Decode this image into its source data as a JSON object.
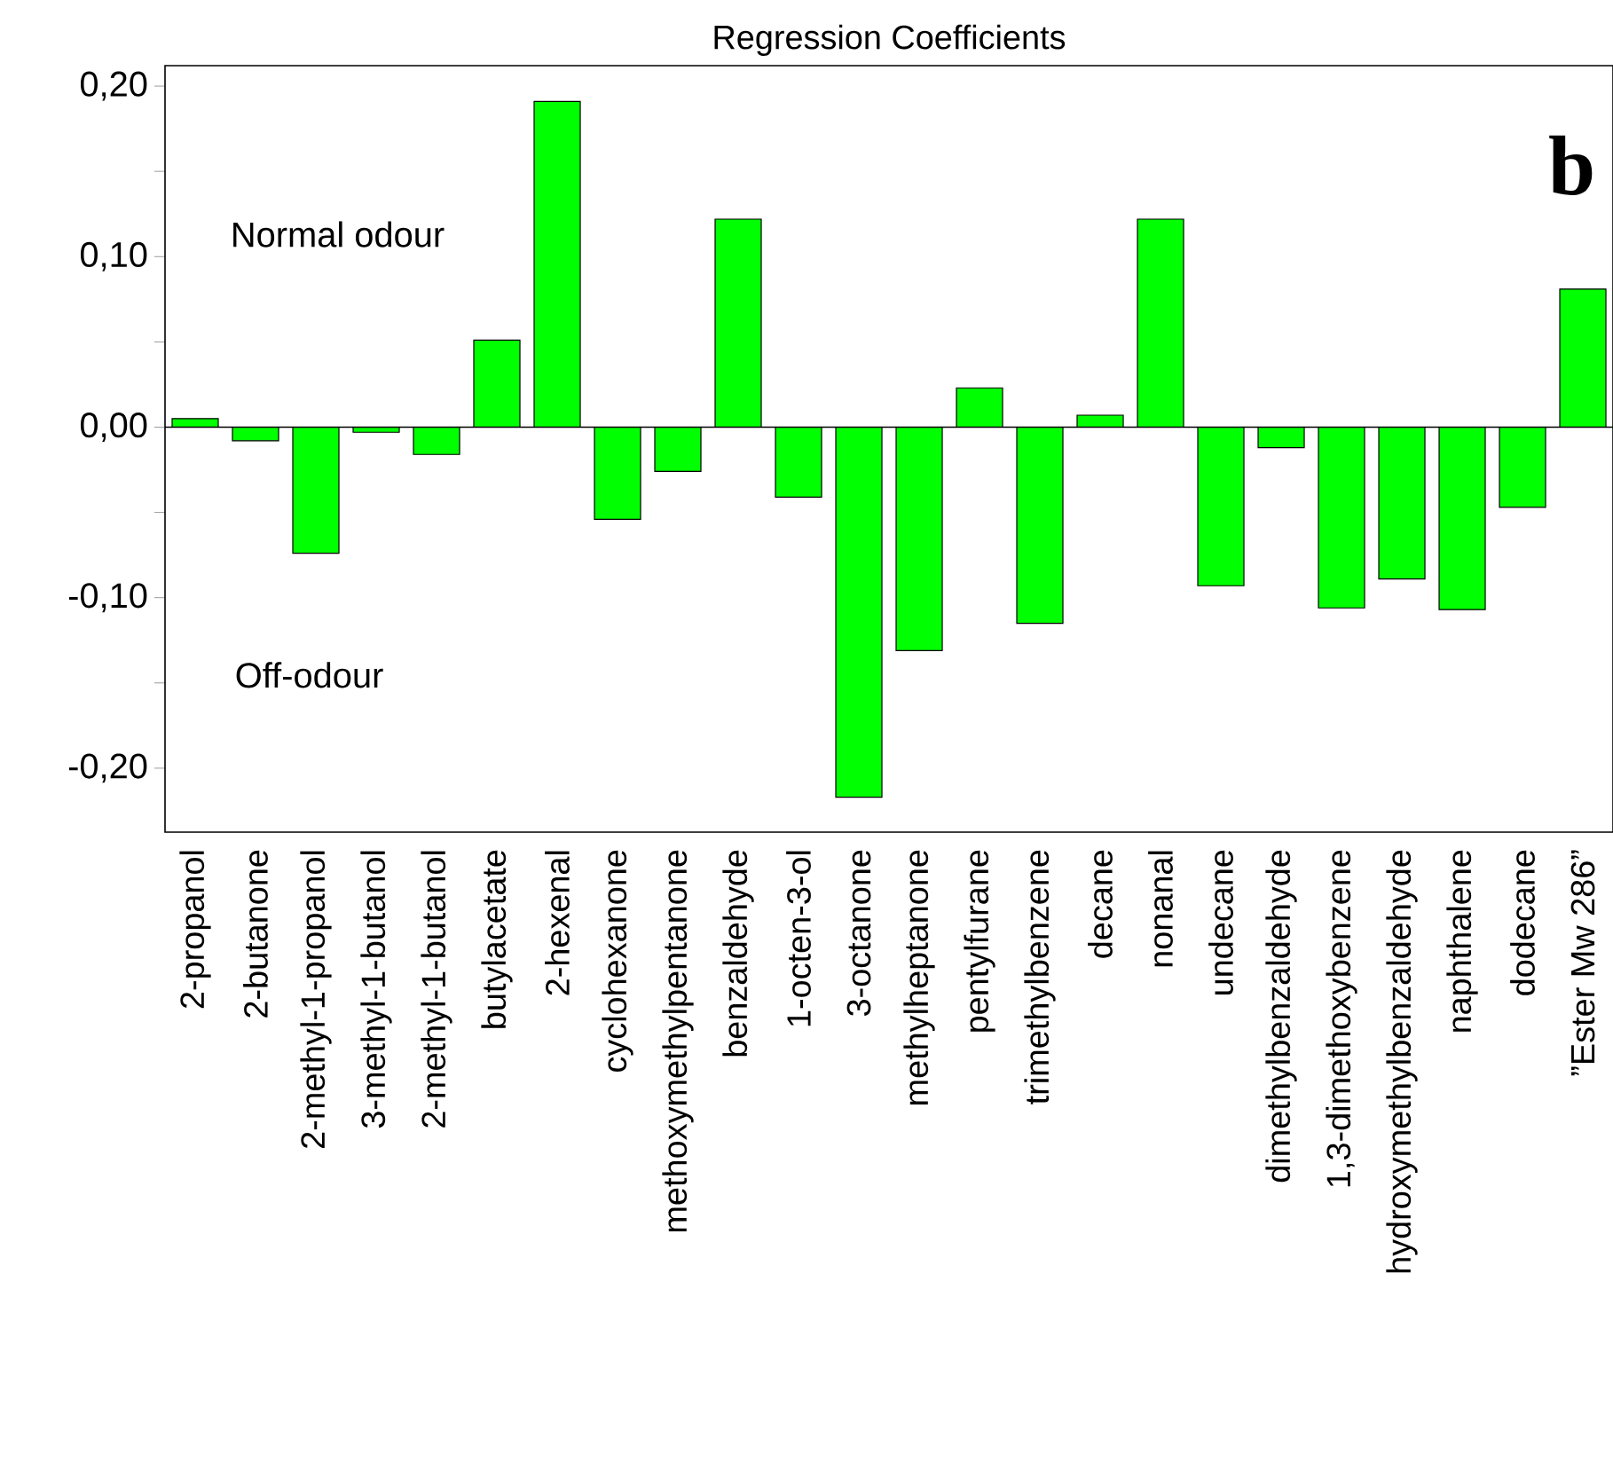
{
  "chart_data": {
    "type": "bar",
    "title": "Regression Coefficients",
    "categories": [
      "2-propanol",
      "2-butanone",
      "2-methyl-1-propanol",
      "3-methyl-1-butanol",
      "2-methyl-1-butanol",
      "butylacetate",
      "2-hexenal",
      "cyclohexanone",
      "methoxymethylpentanone",
      "benzaldehyde",
      "1-octen-3-ol",
      "3-octanone",
      "methylheptanone",
      "pentylfurane",
      "trimethylbenzene",
      "decane",
      "nonanal",
      "undecane",
      "dimethylbenzaldehyde",
      "1,3-dimethoxybenzene",
      "hydroxymethylbenzaldehyde",
      "naphthalene",
      "dodecane",
      "”Ester Mw 286”"
    ],
    "values": [
      0.005,
      -0.008,
      -0.074,
      -0.003,
      -0.016,
      0.051,
      0.191,
      -0.054,
      -0.026,
      0.122,
      -0.041,
      -0.217,
      -0.131,
      0.023,
      -0.115,
      0.007,
      0.122,
      -0.093,
      -0.012,
      -0.106,
      -0.089,
      -0.107,
      -0.047,
      0.081
    ],
    "color": "#00ff00",
    "ylim": [
      -0.2375,
      0.212
    ],
    "yticks": [
      {
        "value": -0.2,
        "label": "-0,20"
      },
      {
        "value": -0.15,
        "label": null
      },
      {
        "value": -0.1,
        "label": "-0,10"
      },
      {
        "value": -0.05,
        "label": null
      },
      {
        "value": 0,
        "label": "0,00"
      },
      {
        "value": 0.05,
        "label": null
      },
      {
        "value": 0.1,
        "label": "0,10"
      },
      {
        "value": 0.15,
        "label": null
      },
      {
        "value": 0.2,
        "label": "0,20"
      }
    ],
    "ref_lines": [
      {
        "axis": "y",
        "value": 0
      }
    ],
    "annotations": [
      "Normal odour",
      "Off-odour",
      "b"
    ],
    "grid": false
  }
}
